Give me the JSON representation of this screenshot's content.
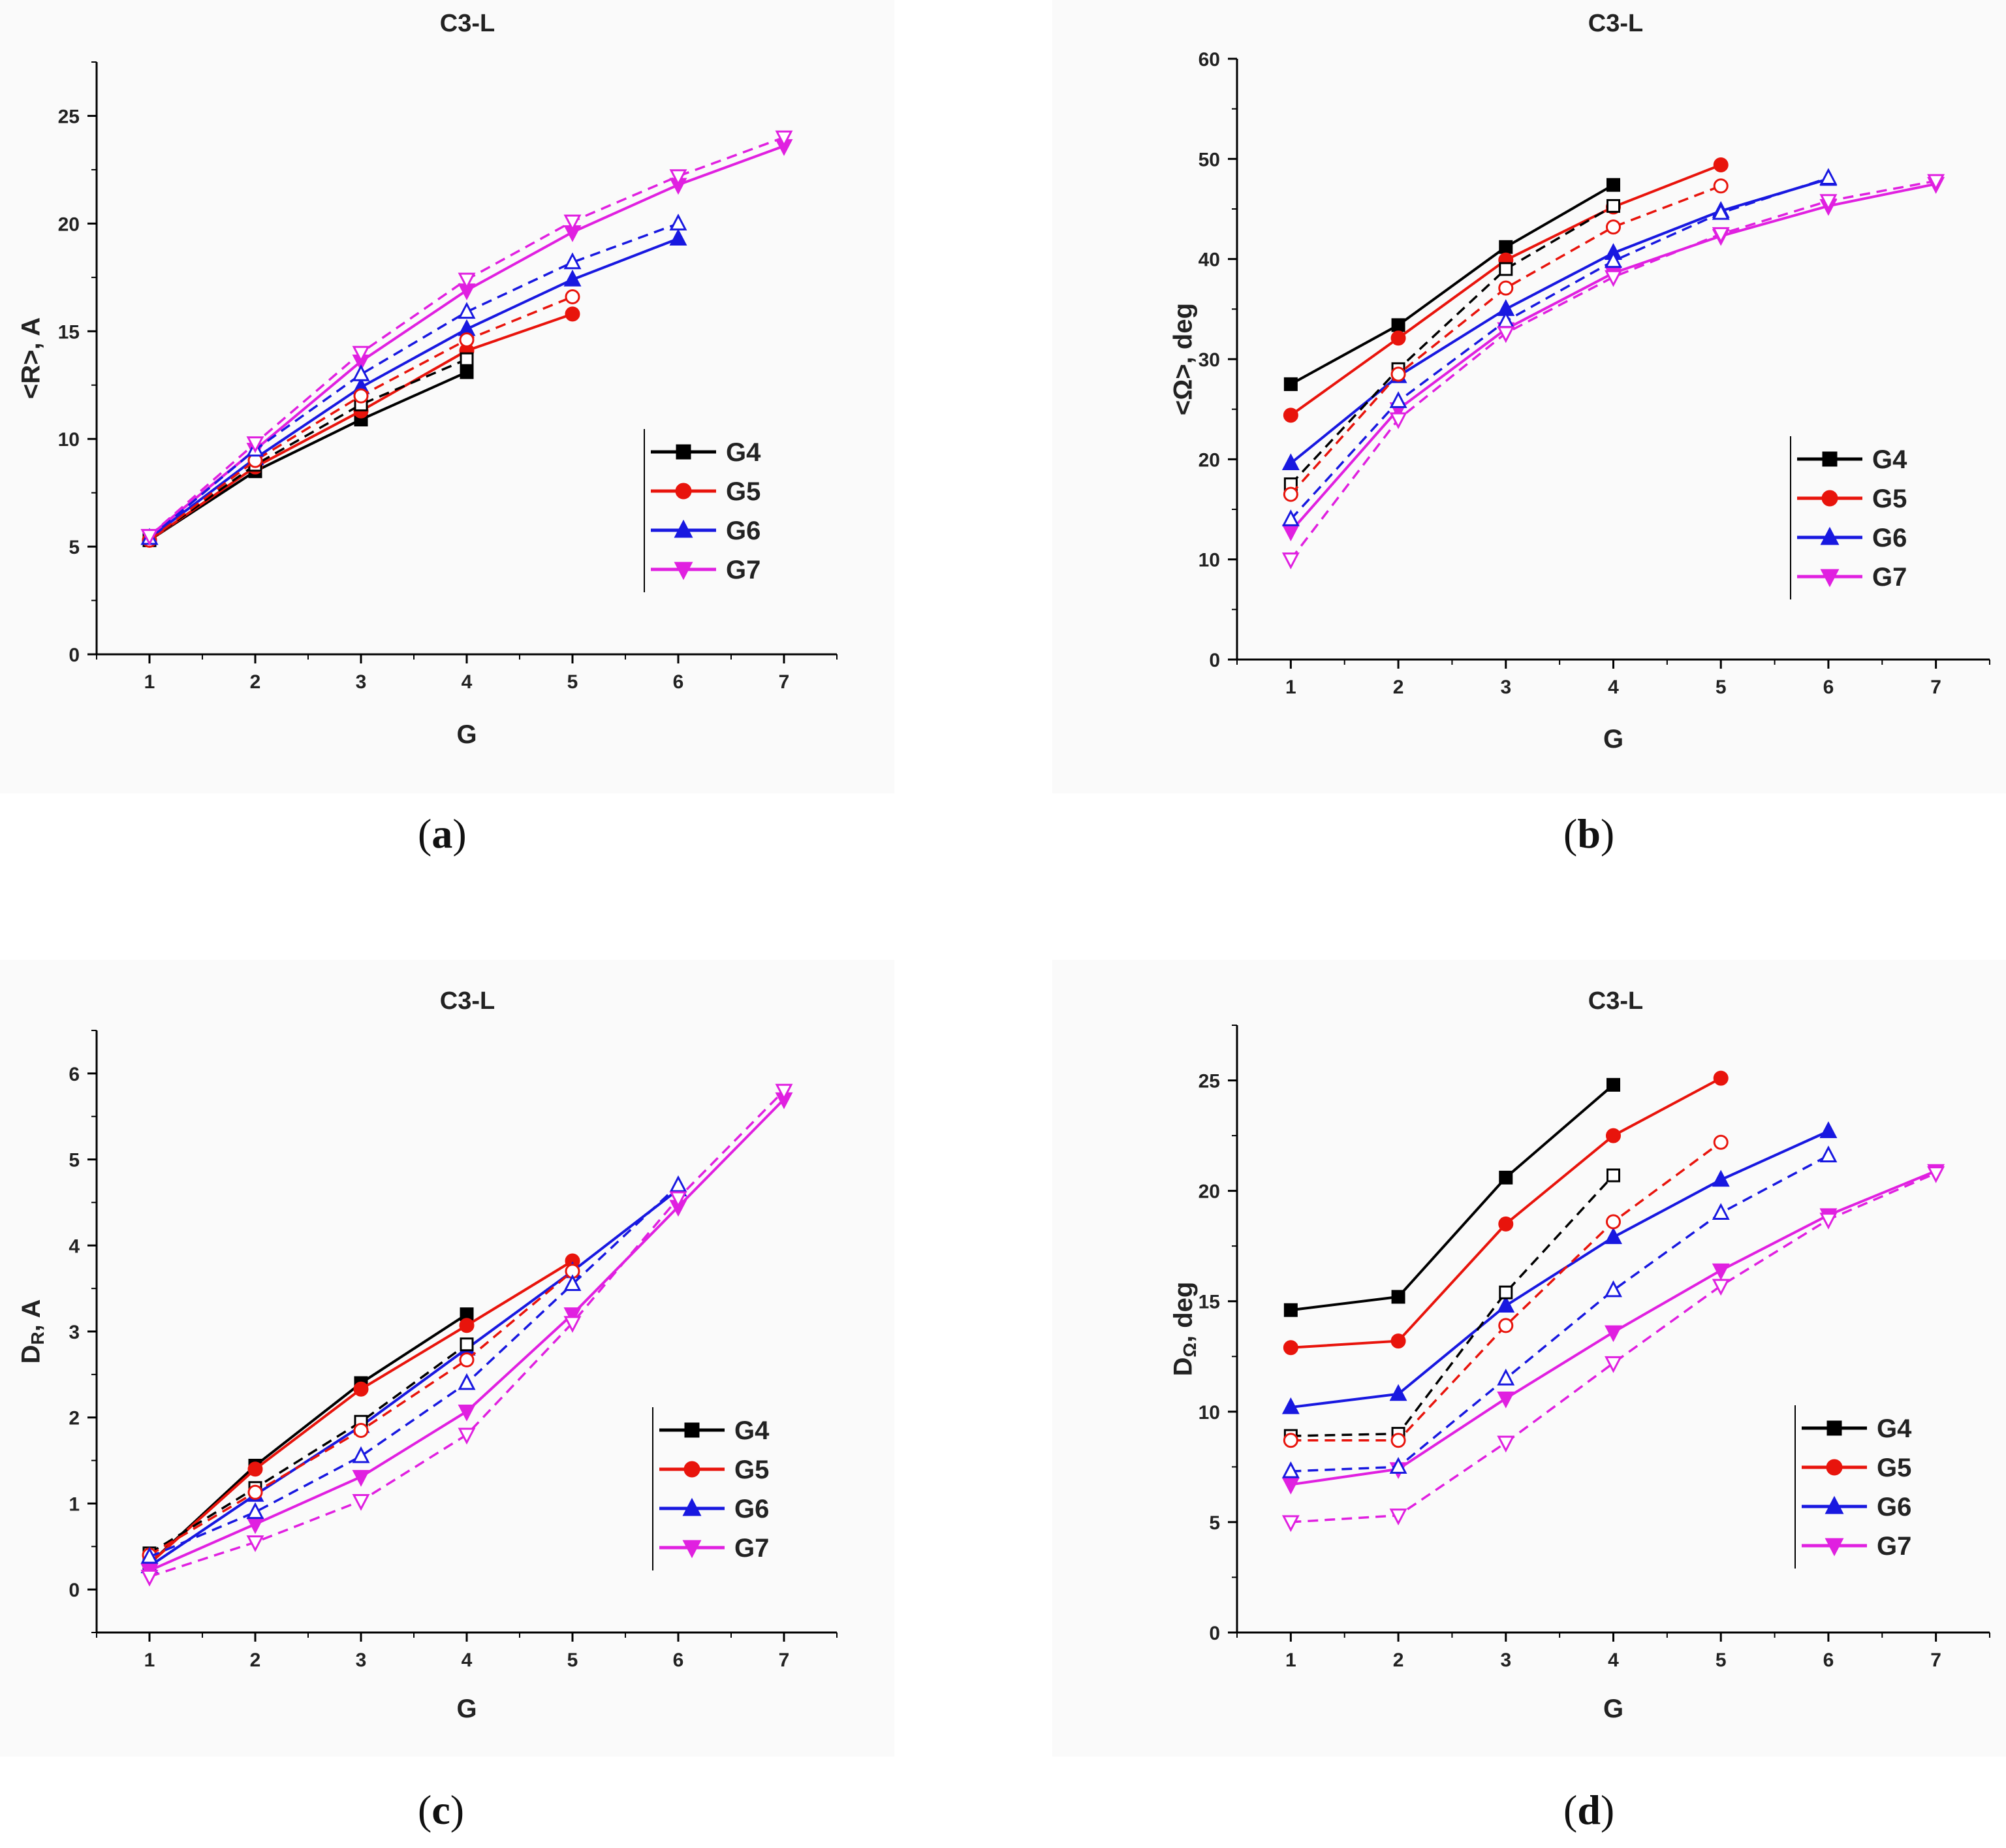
{
  "captions": [
    "a",
    "b",
    "c",
    "d"
  ],
  "colors": {
    "G4": "#000000",
    "G5": "#e8140c",
    "G6": "#1818e0",
    "G7": "#e020e0"
  },
  "chart_data": [
    {
      "type": "line",
      "title": "C3-L",
      "xlabel": "G",
      "ylabel": "<R>, A",
      "xlim": [
        0.5,
        7.5
      ],
      "ylim": [
        0,
        27.5
      ],
      "xticks": [
        "1",
        "2",
        "3",
        "4",
        "5",
        "6",
        "7"
      ],
      "yticks": [
        "0",
        "5",
        "10",
        "15",
        "20",
        "25"
      ],
      "legend": [
        "G4",
        "G5",
        "G6",
        "G7"
      ],
      "series": [
        {
          "name": "G4",
          "style": "solid",
          "marker": "square",
          "filled": true,
          "x": [
            1,
            2,
            3,
            4
          ],
          "y": [
            5.3,
            8.5,
            10.9,
            13.1
          ]
        },
        {
          "name": "G5",
          "style": "solid",
          "marker": "circle",
          "filled": true,
          "x": [
            1,
            2,
            3,
            4,
            5
          ],
          "y": [
            5.3,
            8.7,
            11.3,
            14.1,
            15.8
          ]
        },
        {
          "name": "G6",
          "style": "solid",
          "marker": "triangle-up",
          "filled": true,
          "x": [
            1,
            2,
            3,
            4,
            5,
            6
          ],
          "y": [
            5.4,
            9.1,
            12.4,
            15.1,
            17.4,
            19.3
          ]
        },
        {
          "name": "G7",
          "style": "solid",
          "marker": "triangle-down",
          "filled": true,
          "x": [
            1,
            2,
            3,
            4,
            5,
            6,
            7
          ],
          "y": [
            5.5,
            9.5,
            13.6,
            16.9,
            19.6,
            21.8,
            23.6
          ]
        },
        {
          "name": "G4",
          "style": "dashed",
          "marker": "square",
          "filled": false,
          "x": [
            1,
            2,
            3,
            4
          ],
          "y": [
            5.3,
            8.8,
            11.6,
            13.7
          ]
        },
        {
          "name": "G5",
          "style": "dashed",
          "marker": "circle",
          "filled": false,
          "x": [
            1,
            2,
            3,
            4,
            5
          ],
          "y": [
            5.3,
            9.0,
            12.0,
            14.6,
            16.6
          ]
        },
        {
          "name": "G6",
          "style": "dashed",
          "marker": "triangle-up",
          "filled": false,
          "x": [
            1,
            2,
            3,
            4,
            5,
            6
          ],
          "y": [
            5.4,
            9.5,
            13.0,
            15.9,
            18.2,
            20.0
          ]
        },
        {
          "name": "G7",
          "style": "dashed",
          "marker": "triangle-down",
          "filled": false,
          "x": [
            1,
            2,
            3,
            4,
            5,
            6,
            7
          ],
          "y": [
            5.5,
            9.8,
            14.0,
            17.4,
            20.1,
            22.2,
            24.0
          ]
        }
      ]
    },
    {
      "type": "line",
      "title": "C3-L",
      "xlabel": "G",
      "ylabel": "<Ω>, deg",
      "xlim": [
        0.5,
        7.5
      ],
      "ylim": [
        0,
        60
      ],
      "xticks": [
        "1",
        "2",
        "3",
        "4",
        "5",
        "6",
        "7"
      ],
      "yticks": [
        "0",
        "10",
        "20",
        "30",
        "40",
        "50",
        "60"
      ],
      "legend": [
        "G4",
        "G5",
        "G6",
        "G7"
      ],
      "series": [
        {
          "name": "G4",
          "style": "solid",
          "marker": "square",
          "filled": true,
          "x": [
            1,
            2,
            3,
            4
          ],
          "y": [
            27.5,
            33.4,
            41.2,
            47.4
          ]
        },
        {
          "name": "G5",
          "style": "solid",
          "marker": "circle",
          "filled": true,
          "x": [
            1,
            2,
            3,
            4,
            5
          ],
          "y": [
            24.4,
            32.1,
            39.9,
            45.2,
            49.4
          ]
        },
        {
          "name": "G6",
          "style": "solid",
          "marker": "triangle-up",
          "filled": true,
          "x": [
            1,
            2,
            3,
            4,
            5,
            6
          ],
          "y": [
            19.6,
            28.3,
            35.0,
            40.6,
            44.8,
            48.0
          ]
        },
        {
          "name": "G7",
          "style": "solid",
          "marker": "triangle-down",
          "filled": true,
          "x": [
            1,
            2,
            3,
            4,
            5,
            6,
            7
          ],
          "y": [
            12.8,
            25.0,
            33.0,
            38.6,
            42.3,
            45.3,
            47.5
          ]
        },
        {
          "name": "G4",
          "style": "dashed",
          "marker": "square",
          "filled": false,
          "x": [
            1,
            2,
            3,
            4
          ],
          "y": [
            17.5,
            29.0,
            39.0,
            45.3
          ]
        },
        {
          "name": "G5",
          "style": "dashed",
          "marker": "circle",
          "filled": false,
          "x": [
            1,
            2,
            3,
            4,
            5
          ],
          "y": [
            16.5,
            28.5,
            37.1,
            43.2,
            47.3
          ]
        },
        {
          "name": "G6",
          "style": "dashed",
          "marker": "triangle-up",
          "filled": false,
          "x": [
            1,
            2,
            3,
            4,
            5,
            6
          ],
          "y": [
            14.0,
            25.8,
            33.8,
            39.8,
            44.6,
            48.1
          ]
        },
        {
          "name": "G7",
          "style": "dashed",
          "marker": "triangle-down",
          "filled": false,
          "x": [
            1,
            2,
            3,
            4,
            5,
            6,
            7
          ],
          "y": [
            10.0,
            24.0,
            32.6,
            38.2,
            42.5,
            45.8,
            47.8
          ]
        }
      ]
    },
    {
      "type": "line",
      "title": "C3-L",
      "xlabel": "G",
      "ylabel": "D",
      "ylabel_sub": "R",
      "ylabel_suffix": ", A",
      "xlim": [
        0.5,
        7.5
      ],
      "ylim": [
        -0.5,
        6.5
      ],
      "xticks": [
        "1",
        "2",
        "3",
        "4",
        "5",
        "6",
        "7"
      ],
      "yticks": [
        "0",
        "1",
        "2",
        "3",
        "4",
        "5",
        "6"
      ],
      "legend": [
        "G4",
        "G5",
        "G6",
        "G7"
      ],
      "series": [
        {
          "name": "G4",
          "style": "solid",
          "marker": "square",
          "filled": true,
          "x": [
            1,
            2,
            3,
            4
          ],
          "y": [
            0.3,
            1.44,
            2.4,
            3.2
          ]
        },
        {
          "name": "G5",
          "style": "solid",
          "marker": "circle",
          "filled": true,
          "x": [
            1,
            2,
            3,
            4,
            5
          ],
          "y": [
            0.3,
            1.4,
            2.33,
            3.07,
            3.82
          ]
        },
        {
          "name": "G6",
          "style": "solid",
          "marker": "triangle-up",
          "filled": true,
          "x": [
            1,
            2,
            3,
            4,
            5,
            6
          ],
          "y": [
            0.27,
            1.1,
            1.9,
            2.8,
            3.7,
            4.65
          ]
        },
        {
          "name": "G7",
          "style": "solid",
          "marker": "triangle-down",
          "filled": true,
          "x": [
            1,
            2,
            3,
            4,
            5,
            6,
            7
          ],
          "y": [
            0.22,
            0.76,
            1.31,
            2.07,
            3.2,
            4.45,
            5.7
          ]
        },
        {
          "name": "G4",
          "style": "dashed",
          "marker": "square",
          "filled": false,
          "x": [
            1,
            2,
            3,
            4
          ],
          "y": [
            0.42,
            1.18,
            1.95,
            2.85
          ]
        },
        {
          "name": "G5",
          "style": "dashed",
          "marker": "circle",
          "filled": false,
          "x": [
            1,
            2,
            3,
            4,
            5
          ],
          "y": [
            0.4,
            1.13,
            1.85,
            2.67,
            3.7
          ]
        },
        {
          "name": "G6",
          "style": "dashed",
          "marker": "triangle-up",
          "filled": false,
          "x": [
            1,
            2,
            3,
            4,
            5,
            6
          ],
          "y": [
            0.38,
            0.9,
            1.55,
            2.4,
            3.55,
            4.7
          ]
        },
        {
          "name": "G7",
          "style": "dashed",
          "marker": "triangle-down",
          "filled": false,
          "x": [
            1,
            2,
            3,
            4,
            5,
            6,
            7
          ],
          "y": [
            0.15,
            0.55,
            1.03,
            1.8,
            3.1,
            4.55,
            5.8
          ]
        }
      ]
    },
    {
      "type": "line",
      "title": "C3-L",
      "xlabel": "G",
      "ylabel": "D",
      "ylabel_sub": "Ω",
      "ylabel_suffix": ", deg",
      "xlim": [
        0.5,
        7.5
      ],
      "ylim": [
        0,
        27.5
      ],
      "xticks": [
        "1",
        "2",
        "3",
        "4",
        "5",
        "6",
        "7"
      ],
      "yticks": [
        "0",
        "5",
        "10",
        "15",
        "20",
        "25"
      ],
      "legend": [
        "G4",
        "G5",
        "G6",
        "G7"
      ],
      "series": [
        {
          "name": "G4",
          "style": "solid",
          "marker": "square",
          "filled": true,
          "x": [
            1,
            2,
            3,
            4
          ],
          "y": [
            14.6,
            15.2,
            20.6,
            24.8
          ]
        },
        {
          "name": "G5",
          "style": "solid",
          "marker": "circle",
          "filled": true,
          "x": [
            1,
            2,
            3,
            4,
            5
          ],
          "y": [
            12.9,
            13.2,
            18.5,
            22.5,
            25.1
          ]
        },
        {
          "name": "G6",
          "style": "solid",
          "marker": "triangle-up",
          "filled": true,
          "x": [
            1,
            2,
            3,
            4,
            5,
            6
          ],
          "y": [
            10.2,
            10.8,
            14.8,
            17.9,
            20.5,
            22.7
          ]
        },
        {
          "name": "G7",
          "style": "solid",
          "marker": "triangle-down",
          "filled": true,
          "x": [
            1,
            2,
            3,
            4,
            5,
            6,
            7
          ],
          "y": [
            6.7,
            7.4,
            10.6,
            13.6,
            16.4,
            18.9,
            20.9
          ]
        },
        {
          "name": "G4",
          "style": "dashed",
          "marker": "square",
          "filled": false,
          "x": [
            1,
            2,
            3,
            4
          ],
          "y": [
            8.9,
            9.0,
            15.4,
            20.7
          ]
        },
        {
          "name": "G5",
          "style": "dashed",
          "marker": "circle",
          "filled": false,
          "x": [
            1,
            2,
            3,
            4,
            5
          ],
          "y": [
            8.7,
            8.7,
            13.9,
            18.6,
            22.2
          ]
        },
        {
          "name": "G6",
          "style": "dashed",
          "marker": "triangle-up",
          "filled": false,
          "x": [
            1,
            2,
            3,
            4,
            5,
            6
          ],
          "y": [
            7.3,
            7.5,
            11.5,
            15.5,
            19.0,
            21.6
          ]
        },
        {
          "name": "G7",
          "style": "dashed",
          "marker": "triangle-down",
          "filled": false,
          "x": [
            1,
            2,
            3,
            4,
            5,
            6,
            7
          ],
          "y": [
            5.0,
            5.3,
            8.6,
            12.2,
            15.7,
            18.7,
            20.8
          ]
        }
      ]
    }
  ]
}
